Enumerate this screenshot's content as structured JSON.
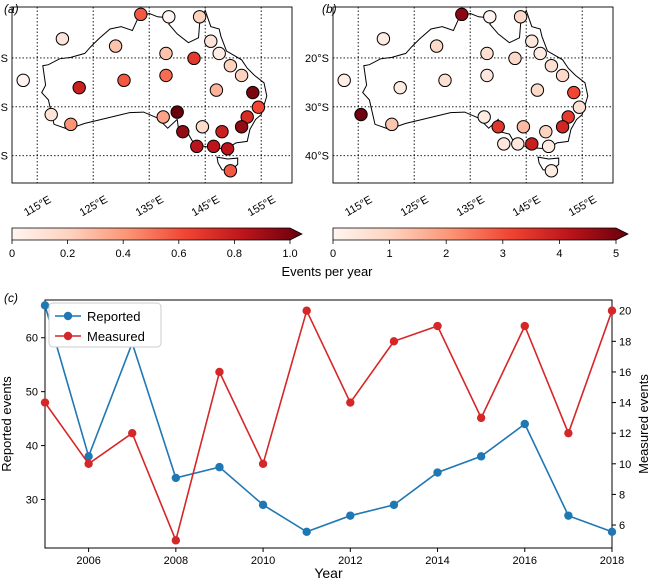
{
  "panels": {
    "a": {
      "label": "(a)"
    },
    "b": {
      "label": "(b)"
    },
    "c": {
      "label": "(c)"
    }
  },
  "maps": {
    "lat_labels": [
      "20°S",
      "30°S",
      "40°S"
    ],
    "lon_labels": [
      "115°E",
      "125°E",
      "135°E",
      "145°E",
      "155°E"
    ],
    "colorbar_label": "Events per year",
    "colorbar_a": {
      "ticks": [
        "0",
        "0.2",
        "0.4",
        "0.6",
        "0.8",
        "1.0"
      ],
      "max": 1.0
    },
    "colorbar_b": {
      "ticks": [
        "0",
        "1",
        "2",
        "3",
        "4",
        "5"
      ],
      "max": 5
    }
  },
  "chart_data": [
    {
      "type": "scatter",
      "panel": "(a)",
      "xlabel": "",
      "ylabel": "",
      "xlim": [
        108,
        158
      ],
      "ylim": [
        -46,
        -10
      ],
      "colorbar": {
        "label": "Events per year",
        "min": 0,
        "max": 1.0
      },
      "points": [
        {
          "lon": 131,
          "lat": -11.5,
          "value": 0.55
        },
        {
          "lon": 136,
          "lat": -12,
          "value": 0.0
        },
        {
          "lon": 141.5,
          "lat": -12,
          "value": 0.2
        },
        {
          "lon": 143.5,
          "lat": -17,
          "value": 0.1
        },
        {
          "lon": 117,
          "lat": -16.5,
          "value": 0.1
        },
        {
          "lon": 126.5,
          "lat": -18,
          "value": 0.25
        },
        {
          "lon": 135.5,
          "lat": -19.5,
          "value": 0.25
        },
        {
          "lon": 140.5,
          "lat": -20.5,
          "value": 0.65
        },
        {
          "lon": 145,
          "lat": -19.5,
          "value": 0.05
        },
        {
          "lon": 147,
          "lat": -22,
          "value": 0.2
        },
        {
          "lon": 149,
          "lat": -24,
          "value": 0.2
        },
        {
          "lon": 110,
          "lat": -25,
          "value": 0.0
        },
        {
          "lon": 120,
          "lat": -26.5,
          "value": 0.75
        },
        {
          "lon": 128,
          "lat": -25,
          "value": 0.55
        },
        {
          "lon": 135.5,
          "lat": -24,
          "value": 0.5
        },
        {
          "lon": 144.5,
          "lat": -27,
          "value": 0.3
        },
        {
          "lon": 151,
          "lat": -27.5,
          "value": 0.95
        },
        {
          "lon": 152,
          "lat": -30.5,
          "value": 0.6
        },
        {
          "lon": 150,
          "lat": -32.5,
          "value": 0.7
        },
        {
          "lon": 115,
          "lat": -32,
          "value": 0.1
        },
        {
          "lon": 135,
          "lat": -32.5,
          "value": 0.35
        },
        {
          "lon": 137.5,
          "lat": -31.5,
          "value": 1.0
        },
        {
          "lon": 118.5,
          "lat": -34,
          "value": 0.4
        },
        {
          "lon": 142,
          "lat": -34.5,
          "value": 0.15
        },
        {
          "lon": 149,
          "lat": -34.5,
          "value": 0.9
        },
        {
          "lon": 138.5,
          "lat": -35.5,
          "value": 0.9
        },
        {
          "lon": 145.5,
          "lat": -35.5,
          "value": 0.75
        },
        {
          "lon": 141,
          "lat": -38.5,
          "value": 0.8
        },
        {
          "lon": 144,
          "lat": -38.5,
          "value": 0.8
        },
        {
          "lon": 146.5,
          "lat": -39,
          "value": 0.8
        },
        {
          "lon": 147,
          "lat": -43.5,
          "value": 0.55
        }
      ]
    },
    {
      "type": "scatter",
      "panel": "(b)",
      "xlabel": "",
      "ylabel": "",
      "xlim": [
        108,
        158
      ],
      "ylim": [
        -46,
        -10
      ],
      "colorbar": {
        "label": "Events per year",
        "min": 0,
        "max": 5
      },
      "points": [
        {
          "lon": 131,
          "lat": -11.5,
          "value": 4.6
        },
        {
          "lon": 136,
          "lat": -12,
          "value": 0.0
        },
        {
          "lon": 141.5,
          "lat": -12,
          "value": 0.8
        },
        {
          "lon": 143.5,
          "lat": -17,
          "value": 0.4
        },
        {
          "lon": 117,
          "lat": -16.5,
          "value": 0.3
        },
        {
          "lon": 126.5,
          "lat": -18,
          "value": 0.8
        },
        {
          "lon": 135.5,
          "lat": -19.5,
          "value": 0.6
        },
        {
          "lon": 140.5,
          "lat": -20.5,
          "value": 0.8
        },
        {
          "lon": 145,
          "lat": -19.5,
          "value": 0.3
        },
        {
          "lon": 147,
          "lat": -22,
          "value": 0.6
        },
        {
          "lon": 149,
          "lat": -24,
          "value": 0.8
        },
        {
          "lon": 110,
          "lat": -25,
          "value": 0.2
        },
        {
          "lon": 120,
          "lat": -26.5,
          "value": 0.3
        },
        {
          "lon": 128,
          "lat": -25,
          "value": 0.6
        },
        {
          "lon": 135.5,
          "lat": -24,
          "value": 0.4
        },
        {
          "lon": 144.5,
          "lat": -27,
          "value": 0.8
        },
        {
          "lon": 151,
          "lat": -27.5,
          "value": 3.0
        },
        {
          "lon": 152,
          "lat": -30.5,
          "value": 0.6
        },
        {
          "lon": 150,
          "lat": -32.5,
          "value": 3.2
        },
        {
          "lon": 113,
          "lat": -32,
          "value": 4.9
        },
        {
          "lon": 135,
          "lat": -32.5,
          "value": 0.3
        },
        {
          "lon": 137.5,
          "lat": -34.5,
          "value": 3.3
        },
        {
          "lon": 118.5,
          "lat": -34,
          "value": 1.2
        },
        {
          "lon": 142,
          "lat": -34.5,
          "value": 1.4
        },
        {
          "lon": 149,
          "lat": -34.5,
          "value": 3.6
        },
        {
          "lon": 146,
          "lat": -35.5,
          "value": 1.0
        },
        {
          "lon": 141,
          "lat": -38,
          "value": 0.4
        },
        {
          "lon": 143.5,
          "lat": -38,
          "value": 3.8
        },
        {
          "lon": 146.5,
          "lat": -38.5,
          "value": 0.3
        },
        {
          "lon": 147,
          "lat": -43.5,
          "value": 0.3
        },
        {
          "lon": 138.5,
          "lat": -38,
          "value": 0.4
        }
      ]
    },
    {
      "type": "line",
      "panel": "(c)",
      "xlabel": "Year",
      "ylabel": "Reported events",
      "ylabel_right": "Measured events",
      "x": [
        2005,
        2006,
        2007,
        2008,
        2009,
        2010,
        2011,
        2012,
        2013,
        2014,
        2015,
        2016,
        2017,
        2018
      ],
      "xticks": [
        "2006",
        "2008",
        "2010",
        "2012",
        "2014",
        "2016",
        "2018"
      ],
      "xlim": [
        2005,
        2018
      ],
      "ylim": [
        21,
        67
      ],
      "yticks": [
        "30",
        "40",
        "50",
        "60"
      ],
      "ylim_right": [
        4.5,
        20.7
      ],
      "yticks_right": [
        "6",
        "8",
        "10",
        "12",
        "14",
        "16",
        "18",
        "20"
      ],
      "legend_position": "top-left",
      "series": [
        {
          "name": "Reported",
          "axis": "left",
          "color": "#1f77b4",
          "values": [
            66,
            38,
            59,
            34,
            36,
            29,
            24,
            27,
            29,
            35,
            38,
            44,
            27,
            24
          ]
        },
        {
          "name": "Measured",
          "axis": "right",
          "color": "#d62728",
          "values": [
            14,
            10,
            12,
            5,
            16,
            10,
            20,
            14,
            18,
            19,
            13,
            19,
            12,
            20
          ]
        }
      ]
    }
  ]
}
